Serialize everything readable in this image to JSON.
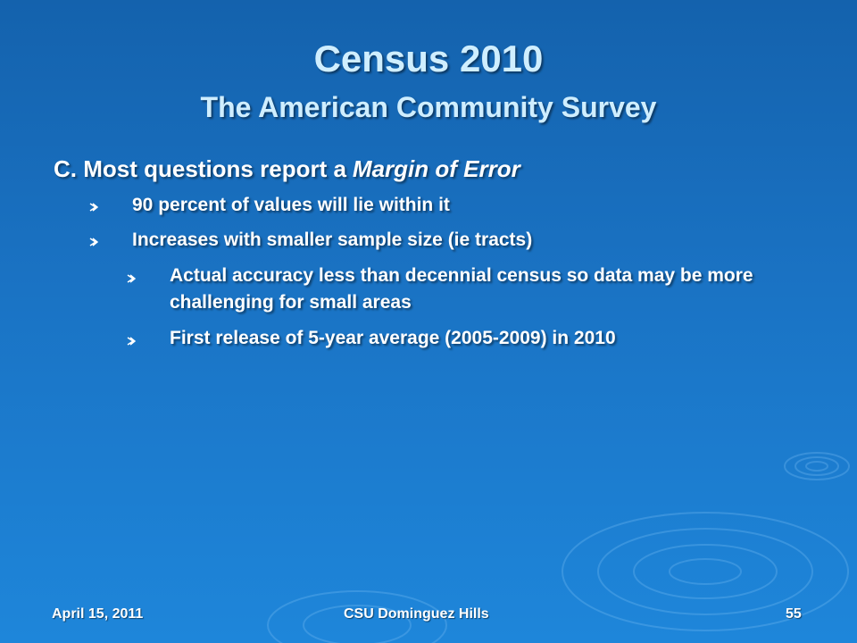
{
  "title": {
    "line1": "Census 2010",
    "line2": "The American Community Survey"
  },
  "heading": {
    "prefix": "C. Most questions report a",
    "emphasis": "Margin of Error"
  },
  "bullets": [
    "90 percent of values will lie within it",
    "Increases with smaller sample size (ie tracts)"
  ],
  "sub_bullets": [
    "Actual accuracy less than decennial census so data may be more challenging for small areas",
    "First release of 5-year average (2005-2009) in 2010"
  ],
  "footer": {
    "date": "April 15, 2011",
    "organization": "CSU Dominguez Hills",
    "page": "55"
  }
}
